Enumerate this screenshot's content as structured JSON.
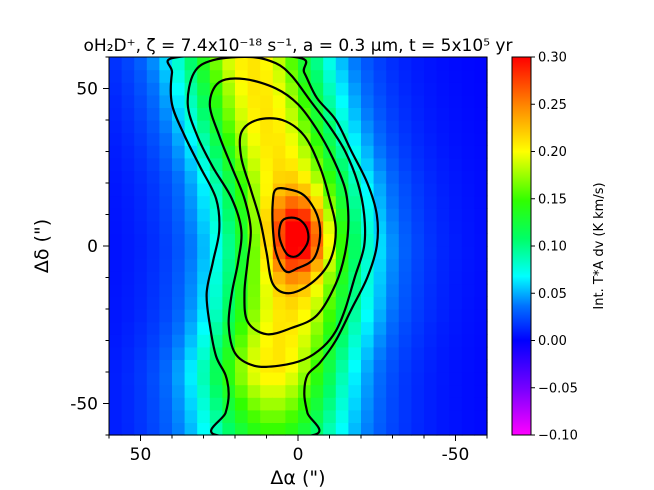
{
  "chart_data": {
    "type": "heatmap",
    "title": "oH₂D⁺, ζ = 7.4x10⁻¹⁸ s⁻¹,  a = 0.3 μm, t = 5x10⁵ yr",
    "xlabel": "Δα (\")",
    "ylabel": "Δδ (\")",
    "xlim": [
      60,
      -60
    ],
    "ylim": [
      -60,
      60
    ],
    "x_ticks": [
      50,
      0,
      -50
    ],
    "x_tick_labels": [
      "50",
      "0",
      "-50"
    ],
    "y_ticks": [
      50,
      0,
      -50
    ],
    "y_tick_labels": [
      "50",
      "0",
      "-50"
    ],
    "grid": false,
    "colorbar": {
      "label": "Int. T*A dv  (K km/s)",
      "min": -0.1,
      "max": 0.3,
      "ticks": [
        -0.1,
        -0.05,
        0.0,
        0.05,
        0.1,
        0.15,
        0.2,
        0.25,
        0.3
      ],
      "tick_labels": [
        "−0.10",
        "−0.05",
        "0.00",
        "0.05",
        "0.10",
        "0.15",
        "0.20",
        "0.25",
        "0.30"
      ],
      "colormap": "gist_rainbow-like (magenta → blue → cyan → green → yellow → orange → red)"
    },
    "peak": {
      "x": 0,
      "y": 3,
      "value": 0.27
    },
    "background_value": 0.0,
    "contour_levels": [
      0.09,
      0.12,
      0.15,
      0.18,
      0.21,
      0.24
    ],
    "contours": [
      {
        "level": 0.09,
        "points": [
          [
            -3,
            -41
          ],
          [
            -2,
            -47
          ],
          [
            -3,
            -53
          ],
          [
            -5,
            -60
          ],
          [
            26,
            -60
          ],
          [
            23,
            -53
          ],
          [
            22,
            -47
          ],
          [
            23,
            -41
          ],
          [
            26,
            -35
          ],
          [
            28,
            -25
          ],
          [
            29,
            -15
          ],
          [
            27,
            -5
          ],
          [
            25,
            5
          ],
          [
            26,
            15
          ],
          [
            31,
            25
          ],
          [
            36,
            35
          ],
          [
            40,
            45
          ],
          [
            40,
            55
          ],
          [
            38,
            60
          ],
          [
            1,
            60
          ],
          [
            -2,
            55
          ],
          [
            -6,
            47
          ],
          [
            -12,
            40
          ],
          [
            -17,
            30
          ],
          [
            -22,
            20
          ],
          [
            -25,
            10
          ],
          [
            -25,
            0
          ],
          [
            -22,
            -10
          ],
          [
            -17,
            -20
          ],
          [
            -12,
            -30
          ],
          [
            -7,
            -37
          ]
        ]
      },
      {
        "level": 0.12,
        "points": [
          [
            -8,
            -32
          ],
          [
            -2,
            -36
          ],
          [
            6,
            -38
          ],
          [
            14,
            -38
          ],
          [
            20,
            -34
          ],
          [
            22,
            -25
          ],
          [
            21,
            -15
          ],
          [
            19,
            -5
          ],
          [
            18,
            5
          ],
          [
            21,
            15
          ],
          [
            27,
            25
          ],
          [
            32,
            35
          ],
          [
            35,
            45
          ],
          [
            33,
            55
          ],
          [
            27,
            59
          ],
          [
            15,
            60
          ],
          [
            7,
            58
          ],
          [
            2,
            54
          ],
          [
            -4,
            46
          ],
          [
            -10,
            38
          ],
          [
            -15,
            30
          ],
          [
            -19,
            20
          ],
          [
            -21,
            10
          ],
          [
            -21,
            0
          ],
          [
            -18,
            -10
          ],
          [
            -15,
            -20
          ],
          [
            -12,
            -27
          ]
        ]
      },
      {
        "level": 0.15,
        "points": [
          [
            -6,
            -22
          ],
          [
            2,
            -26
          ],
          [
            10,
            -28
          ],
          [
            16,
            -24
          ],
          [
            17,
            -15
          ],
          [
            16,
            -5
          ],
          [
            15,
            5
          ],
          [
            17,
            15
          ],
          [
            21,
            25
          ],
          [
            25,
            35
          ],
          [
            28,
            45
          ],
          [
            25,
            52
          ],
          [
            17,
            53
          ],
          [
            7,
            50
          ],
          [
            0,
            45
          ],
          [
            -6,
            37
          ],
          [
            -11,
            28
          ],
          [
            -15,
            18
          ],
          [
            -16,
            8
          ],
          [
            -15,
            -2
          ],
          [
            -12,
            -12
          ]
        ]
      },
      {
        "level": 0.18,
        "points": [
          [
            -4,
            -12
          ],
          [
            3,
            -15
          ],
          [
            8,
            -12
          ],
          [
            10,
            -2
          ],
          [
            12,
            8
          ],
          [
            15,
            18
          ],
          [
            18,
            28
          ],
          [
            18,
            36
          ],
          [
            13,
            40
          ],
          [
            5,
            40
          ],
          [
            -2,
            35
          ],
          [
            -7,
            25
          ],
          [
            -10,
            15
          ],
          [
            -12,
            5
          ],
          [
            -10,
            -5
          ]
        ]
      },
      {
        "level": 0.21,
        "points": [
          [
            0,
            -7
          ],
          [
            4,
            -8
          ],
          [
            7,
            -2
          ],
          [
            8,
            6
          ],
          [
            8,
            14
          ],
          [
            7,
            18
          ],
          [
            3,
            18
          ],
          [
            -2,
            16
          ],
          [
            -6,
            10
          ],
          [
            -7,
            3
          ],
          [
            -5,
            -4
          ]
        ]
      },
      {
        "level": 0.24,
        "points": [
          [
            0,
            -3
          ],
          [
            3,
            -3
          ],
          [
            5,
            0
          ],
          [
            6,
            4
          ],
          [
            5,
            8
          ],
          [
            2,
            9
          ],
          [
            -1,
            8
          ],
          [
            -3,
            5
          ],
          [
            -3,
            1
          ]
        ]
      }
    ]
  }
}
